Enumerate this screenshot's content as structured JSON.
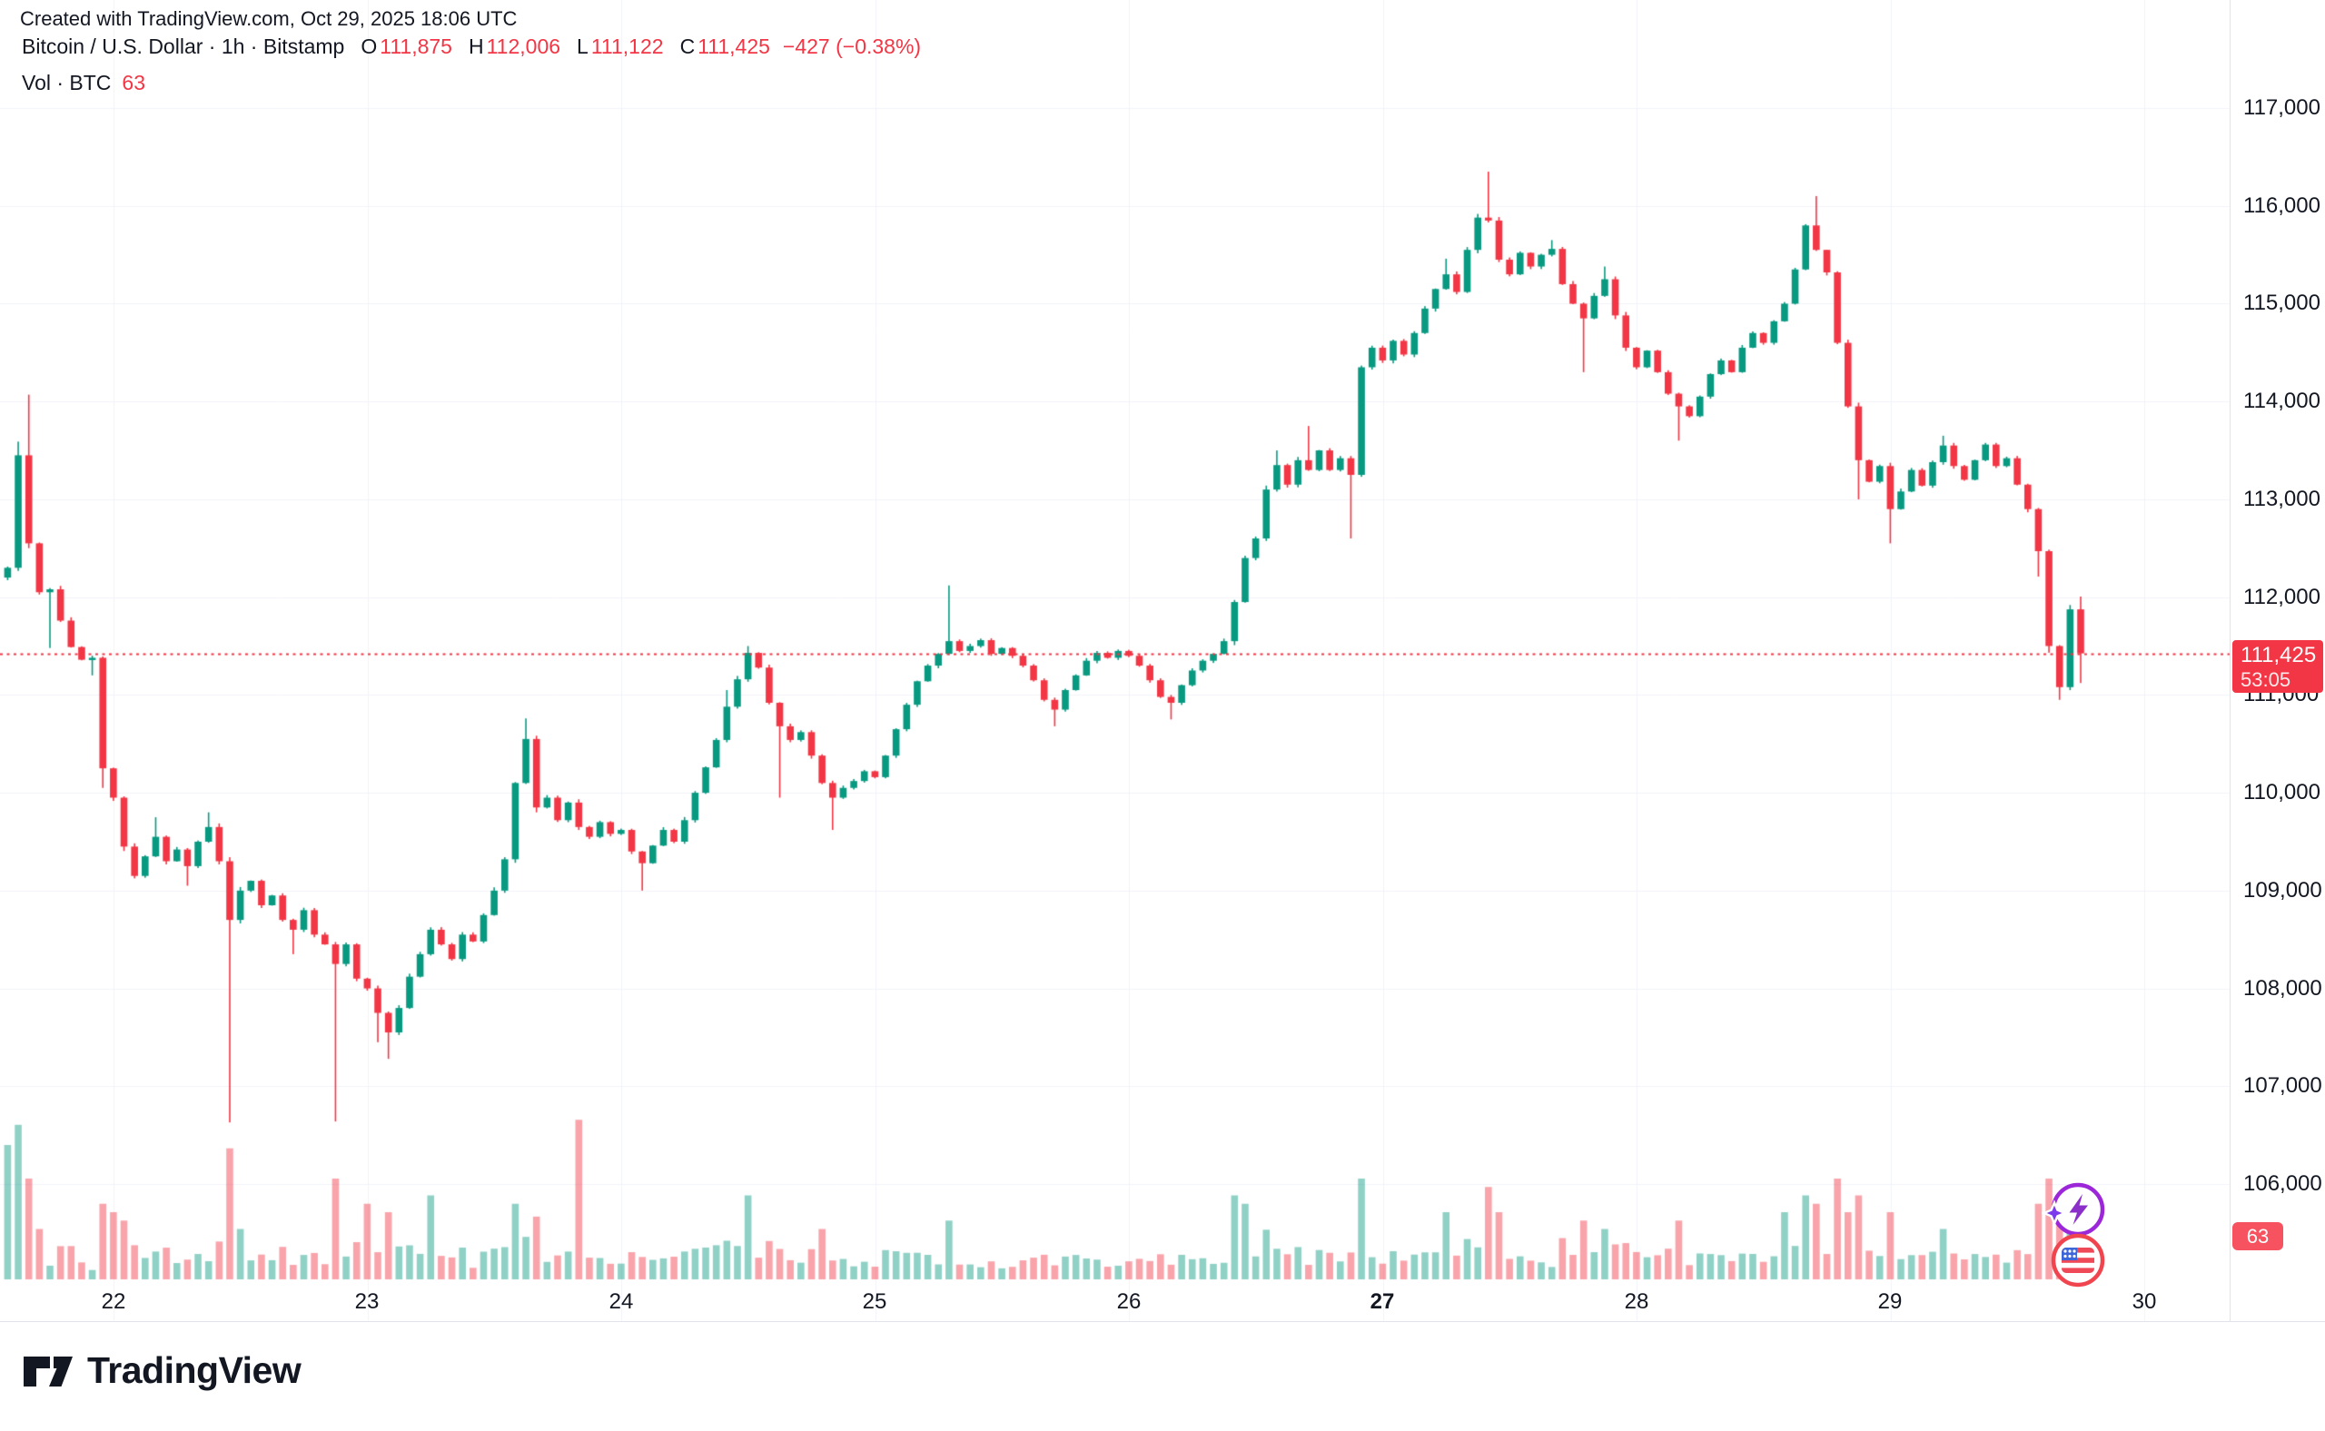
{
  "header": {
    "created_note": "Created with TradingView.com, Oct 29, 2025 18:06 UTC",
    "symbol_title": "Bitcoin / U.S. Dollar · 1h · Bitstamp",
    "ohlc": {
      "o_label": "O",
      "o": "111,875",
      "h_label": "H",
      "h": "112,006",
      "l_label": "L",
      "l": "111,122",
      "c_label": "C",
      "c": "111,425",
      "change": "−427 (−0.38%)"
    },
    "volume_row": {
      "label": "Vol · BTC",
      "value": "63"
    }
  },
  "price_axis": {
    "labels": [
      {
        "text": "117,000",
        "value": 117000
      },
      {
        "text": "116,000",
        "value": 116000
      },
      {
        "text": "115,000",
        "value": 115000
      },
      {
        "text": "114,000",
        "value": 114000
      },
      {
        "text": "113,000",
        "value": 113000
      },
      {
        "text": "112,000",
        "value": 112000
      },
      {
        "text": "111,000",
        "value": 111000
      },
      {
        "text": "110,000",
        "value": 110000
      },
      {
        "text": "109,000",
        "value": 109000
      },
      {
        "text": "108,000",
        "value": 108000
      },
      {
        "text": "107,000",
        "value": 107000
      },
      {
        "text": "106,000",
        "value": 106000
      }
    ],
    "badge": {
      "price": "111,425",
      "countdown": "53:05"
    },
    "volume_badge": "63"
  },
  "time_axis": {
    "labels": [
      {
        "text": "22",
        "bold": false
      },
      {
        "text": "23",
        "bold": false
      },
      {
        "text": "24",
        "bold": false
      },
      {
        "text": "25",
        "bold": false
      },
      {
        "text": "26",
        "bold": false
      },
      {
        "text": "27",
        "bold": true
      },
      {
        "text": "28",
        "bold": false
      },
      {
        "text": "29",
        "bold": false
      },
      {
        "text": "30",
        "bold": false
      }
    ]
  },
  "events": [
    {
      "name": "tradingview-spark-event",
      "icon": "lightning-in-circle"
    },
    {
      "name": "us-economic-event",
      "icon": "us-flag-in-circle"
    }
  ],
  "footer": {
    "brand": "TradingView"
  },
  "chart_data": {
    "type": "candlestick",
    "title": "Bitcoin / U.S. Dollar",
    "exchange": "Bitstamp",
    "interval": "1h",
    "subplot": "volume",
    "last_candle": {
      "open": 111875,
      "high": 112006,
      "low": 111122,
      "close": 111425,
      "change": -427,
      "change_pct": -0.38
    },
    "current_price": 111425,
    "countdown": "53:05",
    "last_volume_btc": 63,
    "price_axis_ticks": [
      106000,
      107000,
      108000,
      109000,
      110000,
      111000,
      112000,
      113000,
      114000,
      115000,
      116000,
      117000
    ],
    "day_labels": [
      22,
      23,
      24,
      25,
      26,
      27,
      28,
      29,
      30
    ],
    "bold_day": 27,
    "grid": true,
    "legend_position": "top-left",
    "first_open": 112200,
    "hours_per_candle": 1,
    "candles": [
      [
        112300
      ],
      [
        113450,
        113590
      ],
      [
        112550,
        114070
      ],
      [
        112050
      ],
      [
        112080,
        null,
        111480
      ],
      [
        111760
      ],
      [
        111490
      ],
      [
        111360
      ],
      [
        111380,
        null,
        111200
      ],
      [
        110250,
        null,
        110050
      ],
      [
        109950
      ],
      [
        109450
      ],
      [
        109150
      ],
      [
        109350
      ],
      [
        109550,
        109750
      ],
      [
        109300
      ],
      [
        109420
      ],
      [
        109250,
        null,
        109050
      ],
      [
        109500
      ],
      [
        109650,
        109800
      ],
      [
        109300
      ],
      [
        108700,
        null,
        106630
      ],
      [
        109000
      ],
      [
        109100
      ],
      [
        108850
      ],
      [
        108950
      ],
      [
        108700
      ],
      [
        108600,
        null,
        108350
      ],
      [
        108800
      ],
      [
        108550
      ],
      [
        108450
      ],
      [
        108250,
        null,
        106640
      ],
      [
        108450
      ],
      [
        108100
      ],
      [
        108000
      ],
      [
        107750,
        null,
        107450
      ],
      [
        107550,
        null,
        107280
      ],
      [
        107800
      ],
      [
        108120
      ],
      [
        108350
      ],
      [
        108600
      ],
      [
        108450
      ],
      [
        108300
      ],
      [
        108550
      ],
      [
        108480
      ],
      [
        108750
      ],
      [
        109000
      ],
      [
        109320
      ],
      [
        110100
      ],
      [
        110550,
        110760
      ],
      [
        109850
      ],
      [
        109950
      ],
      [
        109720
      ],
      [
        109900
      ],
      [
        109650
      ],
      [
        109550
      ],
      [
        109700
      ],
      [
        109580
      ],
      [
        109620
      ],
      [
        109400
      ],
      [
        109280,
        null,
        109000
      ],
      [
        109460
      ],
      [
        109620
      ],
      [
        109500
      ],
      [
        109720
      ],
      [
        110000
      ],
      [
        110260
      ],
      [
        110540
      ],
      [
        110880,
        111050
      ],
      [
        111160
      ],
      [
        111430,
        111500
      ],
      [
        111280
      ],
      [
        110920
      ],
      [
        110680,
        null,
        109950
      ],
      [
        110540
      ],
      [
        110620
      ],
      [
        110380
      ],
      [
        110100
      ],
      [
        109950,
        null,
        109620
      ],
      [
        110050
      ],
      [
        110120
      ],
      [
        110220
      ],
      [
        110160
      ],
      [
        110380
      ],
      [
        110650
      ],
      [
        110900
      ],
      [
        111140
      ],
      [
        111300
      ],
      [
        111420
      ],
      [
        111550,
        112120
      ],
      [
        111450
      ],
      [
        111500
      ],
      [
        111560
      ],
      [
        111420
      ],
      [
        111480
      ],
      [
        111400
      ],
      [
        111300
      ],
      [
        111150
      ],
      [
        110950
      ],
      [
        110850,
        null,
        110680
      ],
      [
        111050
      ],
      [
        111200
      ],
      [
        111350
      ],
      [
        111430
      ],
      [
        111380
      ],
      [
        111450
      ],
      [
        111400
      ],
      [
        111300
      ],
      [
        111150
      ],
      [
        110980
      ],
      [
        110920,
        null,
        110750
      ],
      [
        111100
      ],
      [
        111250
      ],
      [
        111350
      ],
      [
        111420
      ],
      [
        111550
      ],
      [
        111950
      ],
      [
        112400
      ],
      [
        112600
      ],
      [
        113100
      ],
      [
        113350,
        113500
      ],
      [
        113150
      ],
      [
        113400
      ],
      [
        113300,
        113750
      ],
      [
        113500
      ],
      [
        113300
      ],
      [
        113420
      ],
      [
        113250,
        null,
        112600
      ],
      [
        114350
      ],
      [
        114550
      ],
      [
        114420
      ],
      [
        114620
      ],
      [
        114480
      ],
      [
        114700
      ],
      [
        114950
      ],
      [
        115150
      ],
      [
        115300,
        115460
      ],
      [
        115120
      ],
      [
        115550
      ],
      [
        115880
      ],
      [
        115850,
        116350
      ],
      [
        115450
      ],
      [
        115300
      ],
      [
        115520
      ],
      [
        115380
      ],
      [
        115500
      ],
      [
        115560,
        115650
      ],
      [
        115200
      ],
      [
        115000
      ],
      [
        114850,
        null,
        114300
      ],
      [
        115080
      ],
      [
        115250,
        115380
      ],
      [
        114880
      ],
      [
        114550
      ],
      [
        114350
      ],
      [
        114520
      ],
      [
        114300
      ],
      [
        114080
      ],
      [
        113950,
        null,
        113600
      ],
      [
        113850
      ],
      [
        114050
      ],
      [
        114280
      ],
      [
        114420
      ],
      [
        114300
      ],
      [
        114550
      ],
      [
        114700
      ],
      [
        114600
      ],
      [
        114820
      ],
      [
        115000
      ],
      [
        115350
      ],
      [
        115800
      ],
      [
        115550,
        116100
      ],
      [
        115320,
        115500
      ],
      [
        114600
      ],
      [
        113950
      ],
      [
        113400,
        null,
        113000
      ],
      [
        113180
      ],
      [
        113340
      ],
      [
        112900,
        null,
        112550
      ],
      [
        113080
      ],
      [
        113300
      ],
      [
        113140
      ],
      [
        113380
      ],
      [
        113550,
        113650
      ],
      [
        113340
      ],
      [
        113200
      ],
      [
        113400
      ],
      [
        113560
      ],
      [
        113340
      ],
      [
        113420
      ],
      [
        113150
      ],
      [
        112900
      ],
      [
        112470,
        null,
        112210
      ],
      [
        111500
      ],
      [
        111080,
        null,
        110950
      ],
      [
        111875
      ],
      [
        111425,
        112006,
        111122
      ]
    ],
    "volume_spikes": {
      "0": 0.8,
      "1": 0.92,
      "2": 0.6,
      "3": 0.3,
      "9": 0.45,
      "10": 0.4,
      "11": 0.35,
      "21": 0.78,
      "22": 0.3,
      "31": 0.6,
      "34": 0.45,
      "36": 0.4,
      "40": 0.5,
      "48": 0.45,
      "54": 0.95,
      "70": 0.5,
      "77": 0.3,
      "89": 0.35,
      "116": 0.5,
      "117": 0.45,
      "128": 0.6,
      "136": 0.4,
      "140": 0.55,
      "141": 0.4,
      "149": 0.35,
      "151": 0.3,
      "158": 0.35,
      "168": 0.4,
      "170": 0.5,
      "171": 0.45,
      "173": 0.6,
      "174": 0.4,
      "175": 0.5,
      "178": 0.4,
      "183": 0.3,
      "192": 0.45,
      "193": 0.6,
      "194": 0.4,
      "195": 0.35,
      "196": 0.12
    },
    "colors": {
      "up": "#089981",
      "down": "#F23645",
      "volume_up": "rgba(8,153,129,0.45)",
      "volume_down": "rgba(242,54,69,0.45)",
      "grid": "#f0f3fa",
      "dotted_line": "#F23645",
      "price_badge": "#F23645",
      "volume_badge": "#F7525F",
      "text": "#131722"
    }
  }
}
